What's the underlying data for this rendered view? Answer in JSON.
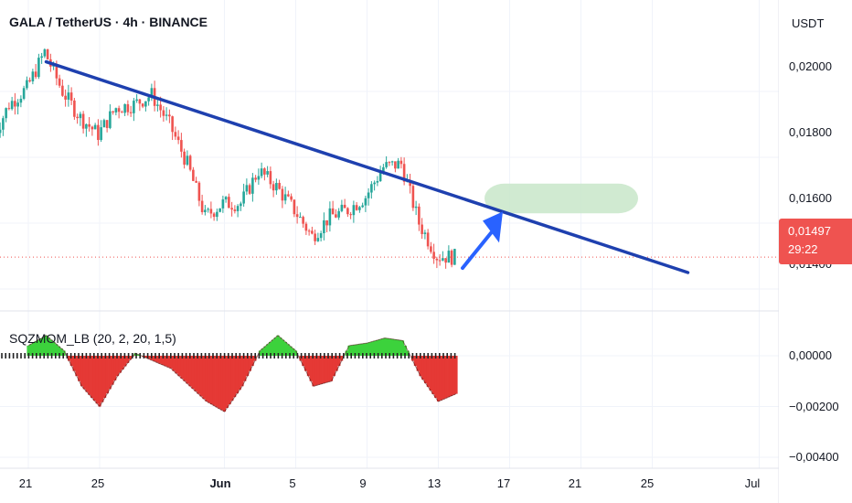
{
  "header": {
    "title": "GALA / TetherUS · 4h · BINANCE"
  },
  "indicator": {
    "title": "SQZMOM_LB (20, 2, 20, 1,5)"
  },
  "price_axis": {
    "currency": "USDT",
    "labels": [
      "0,02000",
      "0,01800",
      "0,01600",
      "0,01400"
    ],
    "current_price": "0,01497",
    "countdown": "29:22"
  },
  "indicator_axis": {
    "labels": [
      "0,00000",
      "−0,00200",
      "−0,00400"
    ]
  },
  "time_axis": {
    "labels": [
      "21",
      "25",
      "Jun",
      "5",
      "9",
      "13",
      "17",
      "21",
      "25",
      "Jul"
    ]
  },
  "colors": {
    "up": "#26a69a",
    "down": "#ef5350",
    "trendline": "#1e40af",
    "arrow": "#2962ff",
    "target_zone": "#c8e6c9",
    "mom_pos": "#3cd23c",
    "mom_neg": "#e53935",
    "price_line": "#ef5350"
  },
  "chart_data": {
    "type": "candlestick",
    "symbol": "GALA / TetherUS",
    "interval": "4h",
    "exchange": "BINANCE",
    "ylim": [
      0.0137,
      0.0213
    ],
    "current_price": 0.01497,
    "price_series_approx": [
      {
        "date": "May 19",
        "price": 0.0185
      },
      {
        "date": "May 20",
        "price": 0.0196
      },
      {
        "date": "May 21",
        "price": 0.0201
      },
      {
        "date": "May 22",
        "price": 0.0212
      },
      {
        "date": "May 23",
        "price": 0.02
      },
      {
        "date": "May 24",
        "price": 0.0192
      },
      {
        "date": "May 25",
        "price": 0.0187
      },
      {
        "date": "May 26",
        "price": 0.0195
      },
      {
        "date": "May 27",
        "price": 0.0196
      },
      {
        "date": "May 28",
        "price": 0.0199
      },
      {
        "date": "May 29",
        "price": 0.019
      },
      {
        "date": "May 30",
        "price": 0.0178
      },
      {
        "date": "May 31",
        "price": 0.0162
      },
      {
        "date": "Jun 1",
        "price": 0.0166
      },
      {
        "date": "Jun 2",
        "price": 0.0166
      },
      {
        "date": "Jun 3",
        "price": 0.0176
      },
      {
        "date": "Jun 4",
        "price": 0.0171
      },
      {
        "date": "Jun 5",
        "price": 0.0164
      },
      {
        "date": "Jun 6",
        "price": 0.0156
      },
      {
        "date": "Jun 7",
        "price": 0.0162
      },
      {
        "date": "Jun 8",
        "price": 0.0164
      },
      {
        "date": "Jun 9",
        "price": 0.0168
      },
      {
        "date": "Jun 10",
        "price": 0.0177
      },
      {
        "date": "Jun 11",
        "price": 0.0178
      },
      {
        "date": "Jun 12",
        "price": 0.016
      },
      {
        "date": "Jun 13",
        "price": 0.015
      },
      {
        "date": "Jun 14",
        "price": 0.01497
      }
    ],
    "trendline": [
      {
        "date": "May 22",
        "price": 0.0209
      },
      {
        "date": "Jun 27",
        "price": 0.0145
      }
    ],
    "target_zone": {
      "date_from": "Jun 16",
      "date_to": "Jun 24",
      "price_from": 0.0163,
      "price_to": 0.0172
    },
    "squeeze_momentum": {
      "ylim": [
        -0.0042,
        0.0012
      ],
      "values": [
        {
          "date": "May 21",
          "value": 0.0004
        },
        {
          "date": "May 22",
          "value": 0.0008
        },
        {
          "date": "May 23",
          "value": 0.0002
        },
        {
          "date": "May 24",
          "value": -0.0012
        },
        {
          "date": "May 25",
          "value": -0.002
        },
        {
          "date": "May 26",
          "value": -0.0008
        },
        {
          "date": "May 27",
          "value": 0.0001
        },
        {
          "date": "May 29",
          "value": -0.0005
        },
        {
          "date": "May 31",
          "value": -0.0018
        },
        {
          "date": "Jun 1",
          "value": -0.0022
        },
        {
          "date": "Jun 2",
          "value": -0.0012
        },
        {
          "date": "Jun 3",
          "value": 0.0002
        },
        {
          "date": "Jun 4",
          "value": 0.0008
        },
        {
          "date": "Jun 5",
          "value": 0.0002
        },
        {
          "date": "Jun 6",
          "value": -0.0012
        },
        {
          "date": "Jun 7",
          "value": -0.001
        },
        {
          "date": "Jun 8",
          "value": 0.0004
        },
        {
          "date": "Jun 9",
          "value": 0.0005
        },
        {
          "date": "Jun 10",
          "value": 0.0007
        },
        {
          "date": "Jun 11",
          "value": 0.0006
        },
        {
          "date": "Jun 12",
          "value": -0.0008
        },
        {
          "date": "Jun 13",
          "value": -0.0018
        },
        {
          "date": "Jun 14",
          "value": -0.0015
        }
      ]
    }
  }
}
